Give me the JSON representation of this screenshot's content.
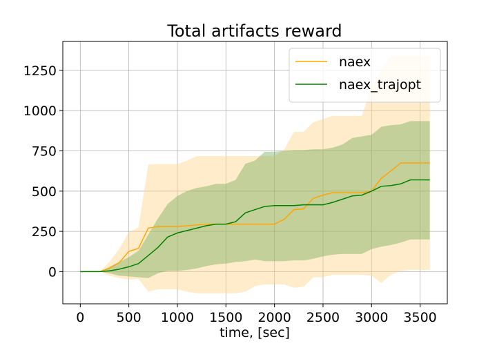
{
  "chart_data": {
    "type": "line",
    "title": "Total artifacts reward",
    "xlabel": "time, [sec]",
    "ylabel": "",
    "xlim": [
      -180,
      3780
    ],
    "ylim": [
      -200,
      1430
    ],
    "xticks": [
      0,
      500,
      1000,
      1500,
      2000,
      2500,
      3000,
      3500
    ],
    "yticks": [
      0,
      250,
      500,
      750,
      1000,
      1250
    ],
    "grid": true,
    "legend_position": "top-right",
    "series": [
      {
        "name": "naex",
        "color": "#ffa500",
        "band_color": "#ffd58a",
        "x": [
          0,
          200,
          300,
          400,
          500,
          600,
          700,
          800,
          900,
          1000,
          1100,
          1200,
          1300,
          1400,
          1500,
          1600,
          1700,
          1800,
          1900,
          2000,
          2100,
          2200,
          2300,
          2400,
          2500,
          2600,
          2700,
          2800,
          2900,
          3000,
          3100,
          3200,
          3300,
          3400,
          3500,
          3600
        ],
        "y": [
          0,
          0,
          20,
          55,
          125,
          145,
          270,
          280,
          280,
          280,
          285,
          290,
          295,
          295,
          295,
          295,
          295,
          295,
          295,
          295,
          325,
          385,
          390,
          455,
          475,
          490,
          490,
          490,
          490,
          500,
          580,
          625,
          675,
          675,
          675,
          675
        ],
        "upper": [
          0,
          0,
          60,
          140,
          245,
          275,
          665,
          668,
          668,
          668,
          690,
          718,
          718,
          718,
          718,
          718,
          718,
          718,
          718,
          718,
          758,
          868,
          868,
          928,
          948,
          968,
          968,
          968,
          968,
          1150,
          1250,
          1340,
          1340,
          1340,
          1340,
          1340
        ],
        "lower": [
          0,
          0,
          -25,
          -40,
          -50,
          -45,
          -125,
          -110,
          -110,
          -110,
          -125,
          -135,
          -135,
          -135,
          -135,
          -135,
          -125,
          -90,
          -80,
          -80,
          -80,
          -100,
          -95,
          -35,
          -35,
          -20,
          -20,
          -20,
          -20,
          -25,
          -70,
          -20,
          5,
          10,
          10,
          10
        ]
      },
      {
        "name": "naex_trajopt",
        "color": "#008000",
        "band_color": "#6aa84f",
        "x": [
          0,
          200,
          300,
          400,
          500,
          600,
          700,
          800,
          900,
          1000,
          1100,
          1200,
          1300,
          1400,
          1500,
          1600,
          1700,
          1800,
          1900,
          2000,
          2100,
          2200,
          2300,
          2400,
          2500,
          2600,
          2700,
          2800,
          2900,
          3000,
          3100,
          3200,
          3300,
          3400,
          3500,
          3600
        ],
        "y": [
          0,
          0,
          5,
          15,
          30,
          50,
          100,
          150,
          215,
          240,
          255,
          270,
          285,
          295,
          295,
          310,
          365,
          385,
          405,
          410,
          410,
          410,
          415,
          415,
          415,
          430,
          450,
          470,
          475,
          500,
          530,
          535,
          545,
          570,
          570,
          570
        ],
        "upper": [
          0,
          0,
          30,
          60,
          90,
          130,
          230,
          330,
          420,
          470,
          500,
          520,
          530,
          545,
          545,
          570,
          670,
          690,
          745,
          745,
          750,
          755,
          755,
          760,
          760,
          770,
          790,
          830,
          840,
          850,
          900,
          910,
          915,
          935,
          935,
          935
        ],
        "lower": [
          0,
          0,
          -10,
          -25,
          -30,
          -35,
          -40,
          -10,
          5,
          5,
          10,
          20,
          35,
          45,
          50,
          60,
          65,
          75,
          65,
          65,
          65,
          70,
          70,
          80,
          95,
          105,
          110,
          110,
          110,
          140,
          155,
          165,
          180,
          200,
          200,
          200
        ]
      }
    ]
  }
}
